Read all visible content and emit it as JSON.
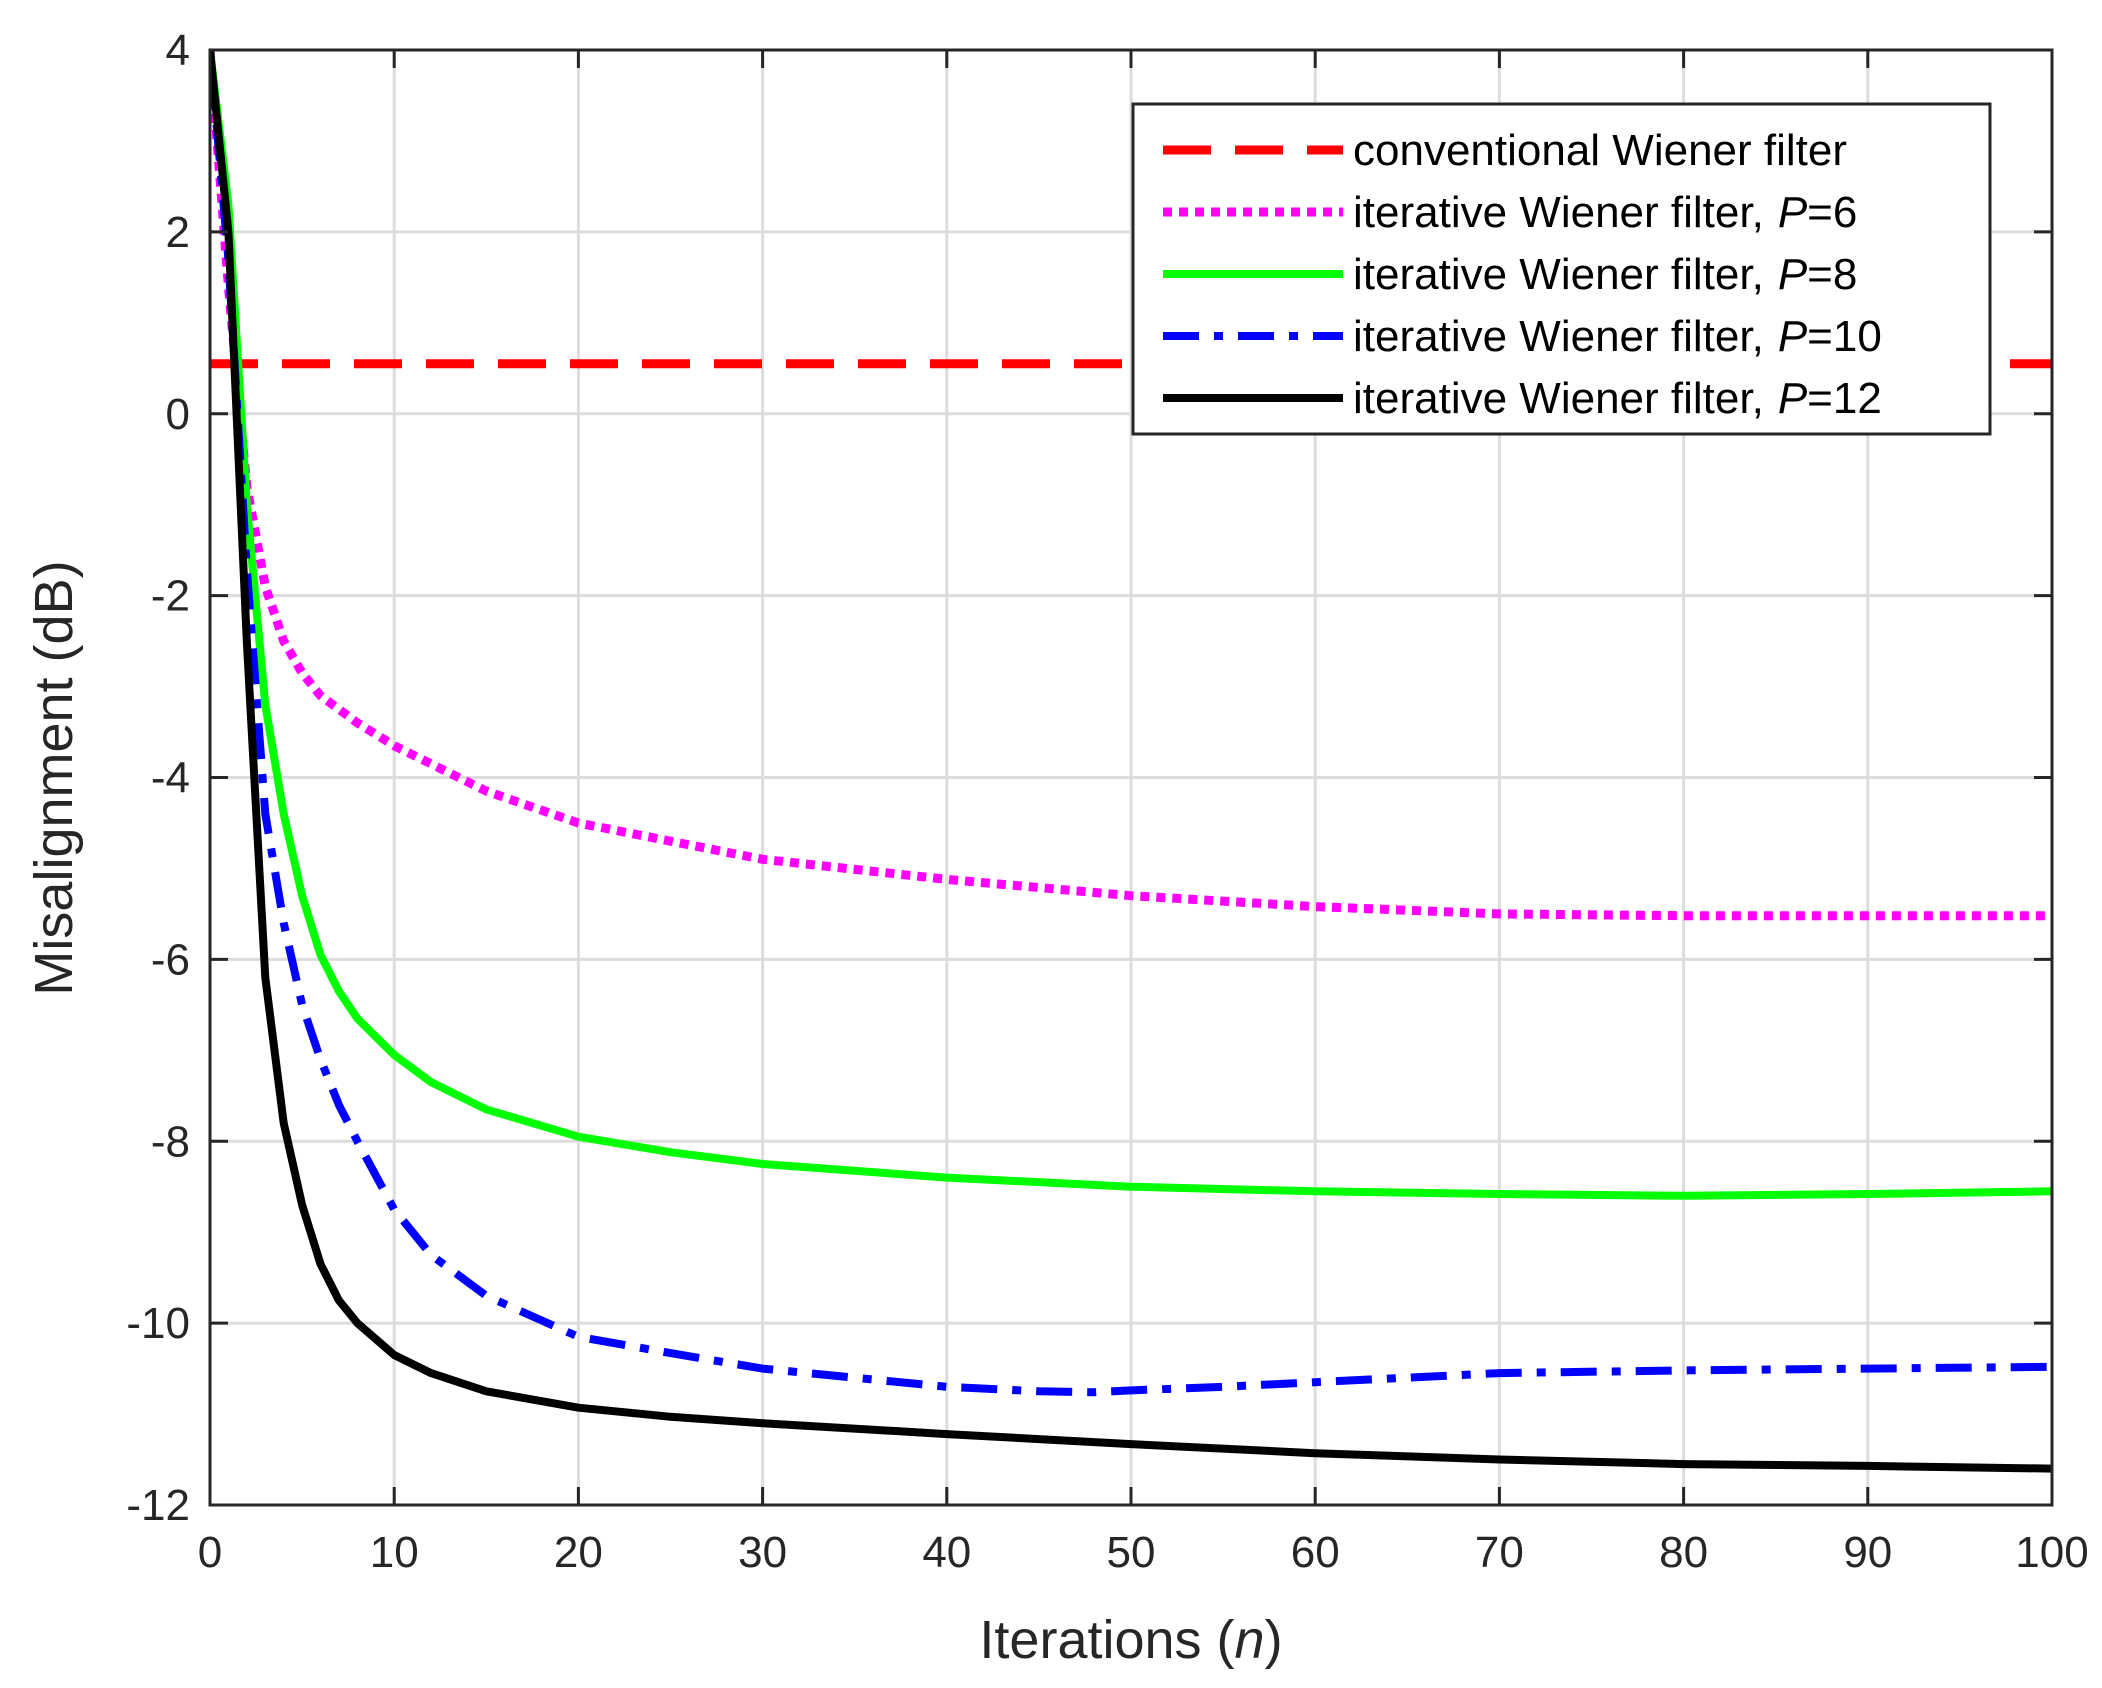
{
  "chart_data": {
    "type": "line",
    "title": "",
    "xlabel": "Iterations",
    "xlabel_var": "n",
    "ylabel": "Misalignment (dB)",
    "xlim": [
      0,
      100
    ],
    "ylim": [
      -12,
      4
    ],
    "xticks": [
      0,
      10,
      20,
      30,
      40,
      50,
      60,
      70,
      80,
      90,
      100
    ],
    "yticks": [
      -12,
      -10,
      -8,
      -6,
      -4,
      -2,
      0,
      2,
      4
    ],
    "grid": true,
    "legend_position": "top-right",
    "series": [
      {
        "name": "conventional Wiener filter",
        "legend_prefix": "conventional Wiener filter",
        "legend_var": "",
        "legend_suffix": "",
        "color": "#ff0000",
        "style": "dashed",
        "x": [
          0,
          100
        ],
        "values": [
          0.55,
          0.55
        ]
      },
      {
        "name": "iterative Wiener filter, P=6",
        "legend_prefix": "iterative Wiener filter,",
        "legend_var": "P",
        "legend_suffix": "=6",
        "color": "#ff00ff",
        "style": "dotted",
        "x": [
          0,
          1,
          2,
          3,
          4,
          5,
          6,
          8,
          10,
          15,
          20,
          25,
          30,
          40,
          50,
          60,
          70,
          80,
          90,
          100
        ],
        "values": [
          4.0,
          1.4,
          -0.8,
          -1.9,
          -2.5,
          -2.85,
          -3.1,
          -3.4,
          -3.65,
          -4.15,
          -4.5,
          -4.7,
          -4.9,
          -5.12,
          -5.3,
          -5.42,
          -5.5,
          -5.52,
          -5.52,
          -5.52
        ]
      },
      {
        "name": "iterative Wiener filter, P=8",
        "legend_prefix": "iterative Wiener filter,",
        "legend_var": "P",
        "legend_suffix": "=8",
        "color": "#00ff00",
        "style": "solid",
        "x": [
          0,
          1,
          2,
          3,
          4,
          5,
          6,
          7,
          8,
          10,
          12,
          15,
          20,
          25,
          30,
          40,
          50,
          60,
          70,
          80,
          90,
          100
        ],
        "values": [
          4.0,
          2.3,
          -1.0,
          -3.2,
          -4.4,
          -5.3,
          -5.95,
          -6.35,
          -6.65,
          -7.05,
          -7.35,
          -7.65,
          -7.95,
          -8.12,
          -8.25,
          -8.4,
          -8.5,
          -8.55,
          -8.58,
          -8.6,
          -8.58,
          -8.55
        ]
      },
      {
        "name": "iterative Wiener filter, P=10",
        "legend_prefix": "iterative Wiener filter,",
        "legend_var": "P",
        "legend_suffix": "=10",
        "color": "#0000ff",
        "style": "dashdot",
        "x": [
          0,
          1,
          2,
          3,
          4,
          5,
          6,
          7,
          8,
          10,
          12,
          15,
          20,
          25,
          30,
          35,
          40,
          45,
          48,
          50,
          55,
          60,
          70,
          80,
          90,
          100
        ],
        "values": [
          4.0,
          1.7,
          -1.7,
          -4.4,
          -5.6,
          -6.5,
          -7.1,
          -7.6,
          -8.0,
          -8.75,
          -9.25,
          -9.7,
          -10.15,
          -10.33,
          -10.5,
          -10.6,
          -10.7,
          -10.75,
          -10.76,
          -10.74,
          -10.7,
          -10.65,
          -10.55,
          -10.52,
          -10.5,
          -10.48
        ]
      },
      {
        "name": "iterative Wiener filter, P=12",
        "legend_prefix": "iterative Wiener filter,",
        "legend_var": "P",
        "legend_suffix": "=12",
        "color": "#000000",
        "style": "solid",
        "x": [
          0,
          1,
          2,
          3,
          4,
          5,
          6,
          7,
          8,
          10,
          12,
          15,
          20,
          25,
          30,
          40,
          50,
          60,
          70,
          80,
          90,
          100
        ],
        "values": [
          4.0,
          2.0,
          -2.5,
          -6.2,
          -7.8,
          -8.7,
          -9.35,
          -9.75,
          -10.0,
          -10.35,
          -10.55,
          -10.75,
          -10.93,
          -11.03,
          -11.1,
          -11.22,
          -11.33,
          -11.43,
          -11.5,
          -11.55,
          -11.57,
          -11.6
        ]
      }
    ]
  }
}
